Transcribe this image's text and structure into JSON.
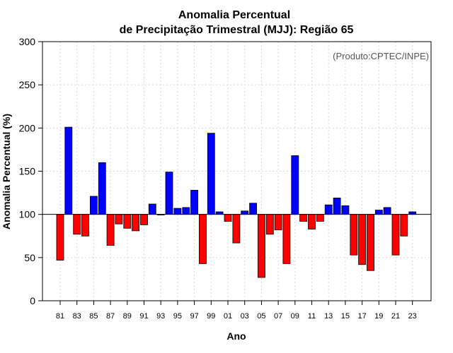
{
  "chart_data": {
    "type": "bar",
    "title_line1": "Anomalia Percentual",
    "title_line2": "de Precipitação Trimestral (MJJ): Região 65",
    "credit": "(Produto:CPTEC/INPE)",
    "xlabel": "Ano",
    "ylabel": "Anomalia Percentual (%)",
    "baseline": 100,
    "ylim": [
      0,
      300
    ],
    "yticks": [
      0,
      50,
      100,
      150,
      200,
      250,
      300
    ],
    "grid": true,
    "years": [
      "81",
      "82",
      "83",
      "84",
      "85",
      "86",
      "87",
      "88",
      "89",
      "90",
      "91",
      "92",
      "93",
      "94",
      "95",
      "96",
      "97",
      "98",
      "99",
      "00",
      "01",
      "02",
      "03",
      "04",
      "05",
      "06",
      "07",
      "08",
      "09",
      "10",
      "11",
      "12",
      "13",
      "14",
      "15",
      "16",
      "17",
      "18",
      "19",
      "20",
      "21",
      "22",
      "23"
    ],
    "xtick_labels": [
      "81",
      "83",
      "85",
      "87",
      "89",
      "91",
      "93",
      "95",
      "97",
      "99",
      "01",
      "03",
      "05",
      "07",
      "09",
      "11",
      "13",
      "15",
      "17",
      "19",
      "21",
      "23"
    ],
    "values": [
      47,
      201,
      77,
      75,
      121,
      160,
      64,
      89,
      84,
      81,
      88,
      112,
      100,
      149,
      107,
      108,
      128,
      43,
      194,
      103,
      92,
      67,
      104,
      113,
      27,
      77,
      82,
      43,
      168,
      92,
      83,
      92,
      111,
      119,
      110,
      53,
      42,
      35,
      105,
      108,
      53,
      75,
      103
    ],
    "colors": {
      "above": "#0000ff",
      "below": "#ff0000",
      "outline": "#000000"
    }
  }
}
